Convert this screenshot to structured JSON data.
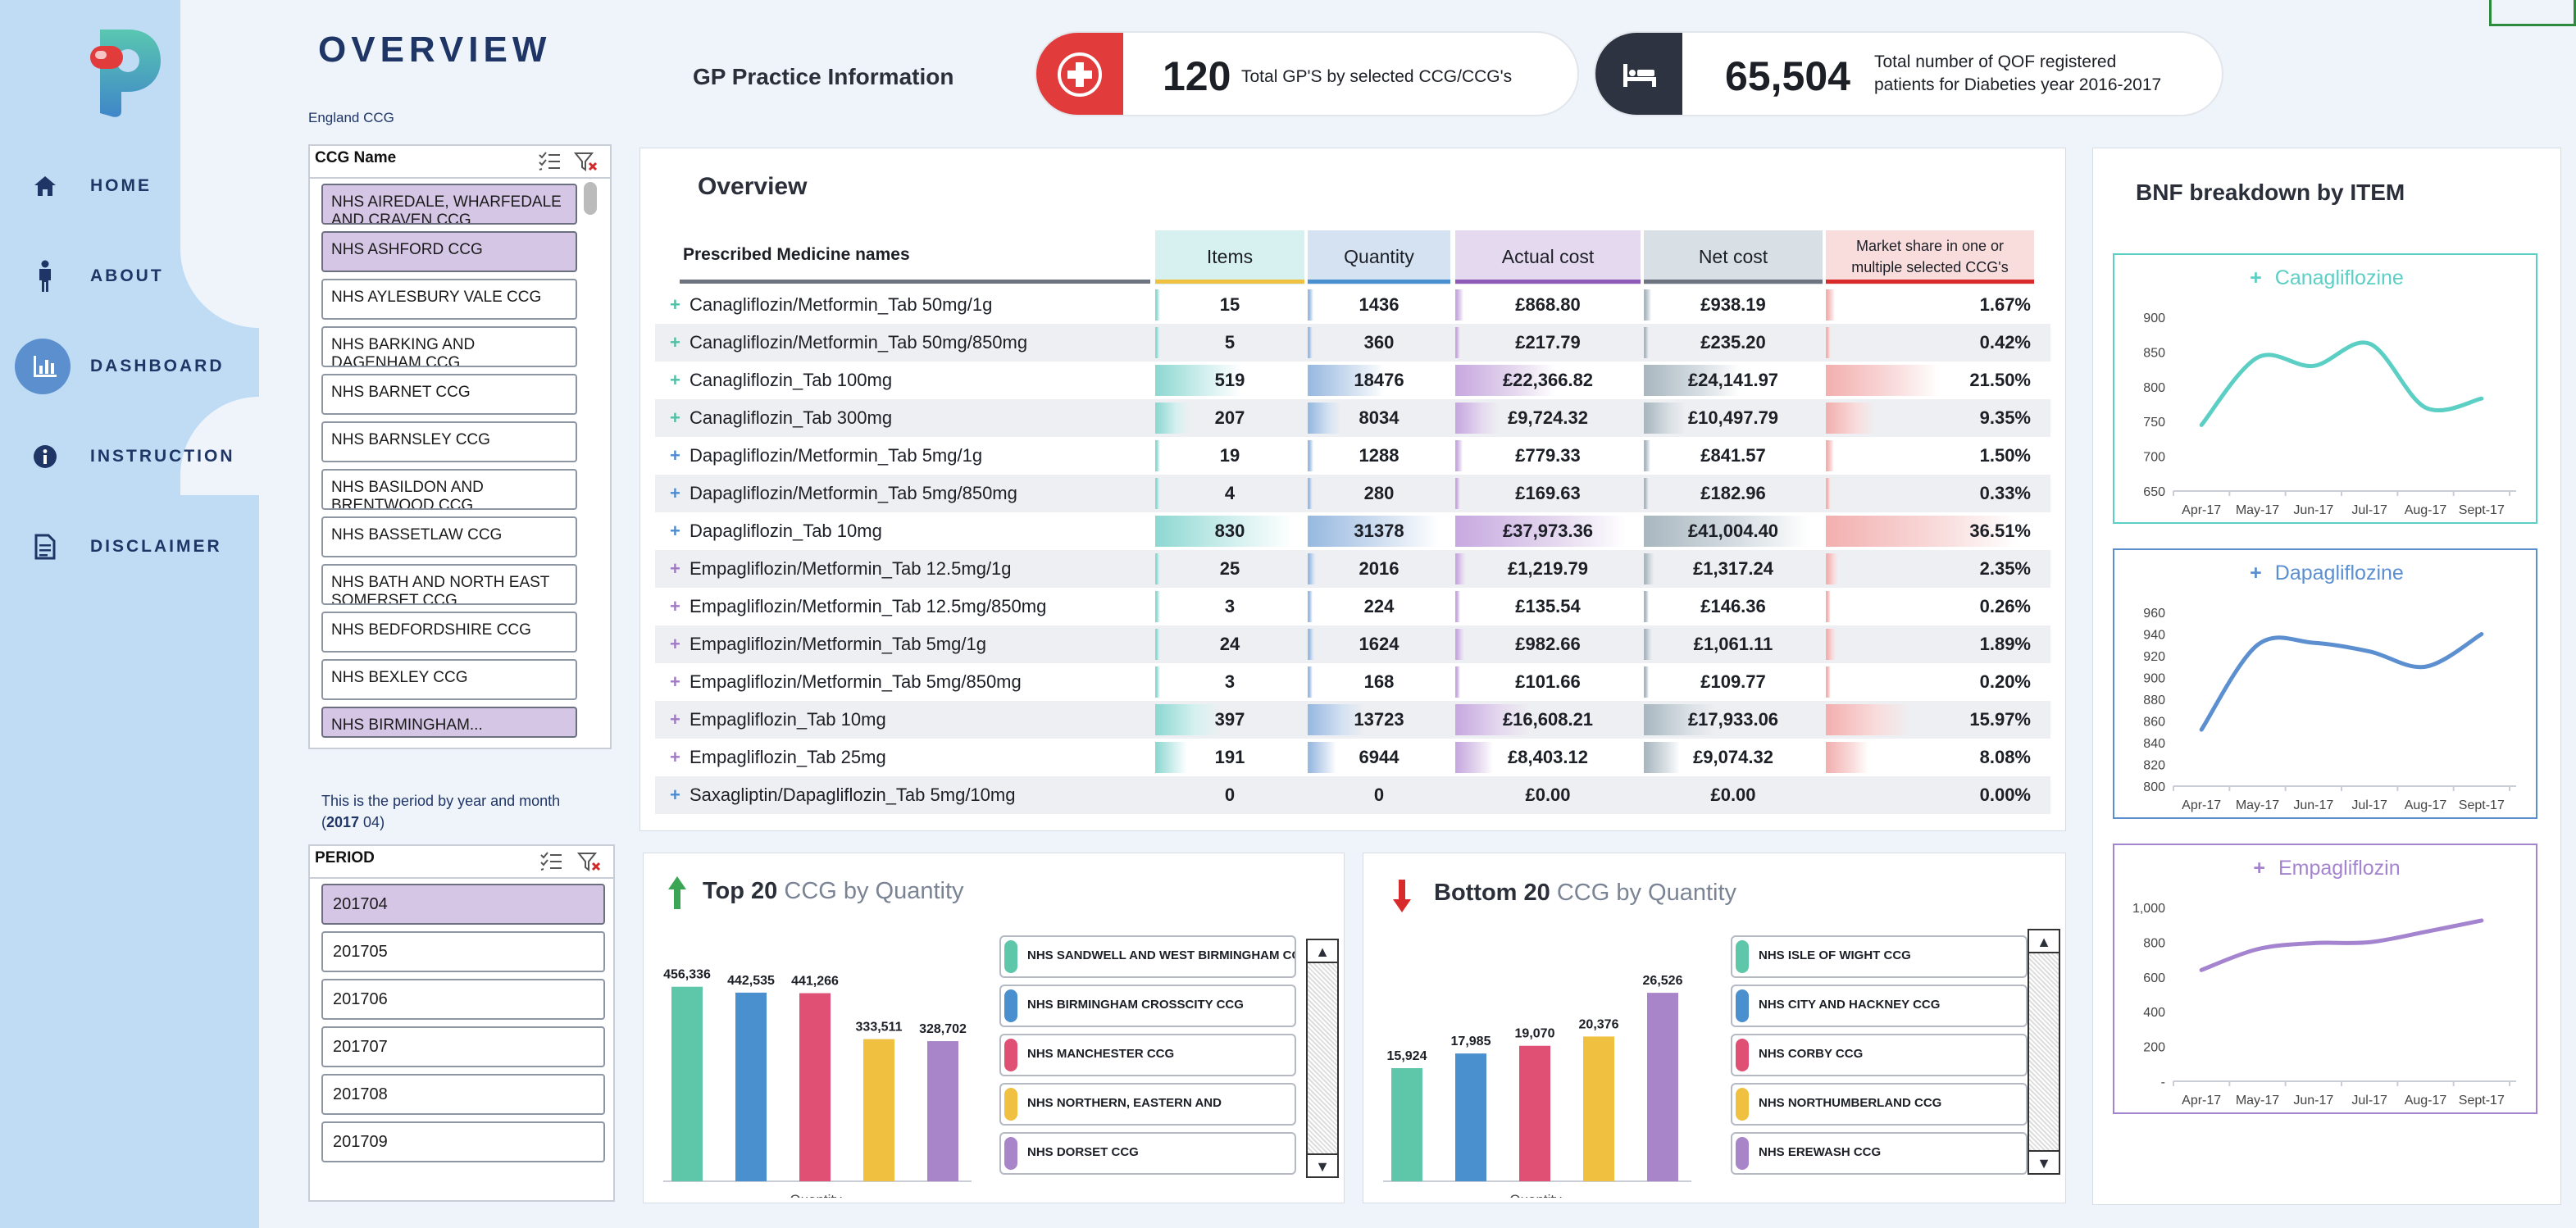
{
  "nav": {
    "items": [
      {
        "label": "HOME",
        "icon": "home-icon"
      },
      {
        "label": "ABOUT",
        "icon": "person-icon"
      },
      {
        "label": "DASHBOARD",
        "icon": "bar-chart-icon",
        "active": true
      },
      {
        "label": "INSTRUCTION",
        "icon": "info-icon"
      },
      {
        "label": "DISCLAIMER",
        "icon": "document-icon"
      }
    ]
  },
  "page": {
    "title": "OVERVIEW",
    "region_label": "England CCG",
    "gp_info_label": "GP Practice Information"
  },
  "kpis": {
    "gp_count": {
      "value": "120",
      "label": "Total GP'S by selected CCG/CCG's"
    },
    "patients": {
      "value": "65,504",
      "label_line1": "Total number of QOF registered",
      "label_line2": "patients for Diabeties year 2016-2017"
    }
  },
  "ccg_slicer": {
    "header": "CCG Name",
    "items": [
      {
        "label": "NHS AIREDALE, WHARFEDALE AND CRAVEN CCG",
        "selected": true
      },
      {
        "label": "NHS ASHFORD CCG",
        "selected": true
      },
      {
        "label": "NHS AYLESBURY VALE CCG",
        "selected": false
      },
      {
        "label": "NHS BARKING AND DAGENHAM CCG",
        "selected": false
      },
      {
        "label": "NHS BARNET CCG",
        "selected": false
      },
      {
        "label": "NHS BARNSLEY CCG",
        "selected": false
      },
      {
        "label": "NHS BASILDON AND BRENTWOOD CCG",
        "selected": false
      },
      {
        "label": "NHS BASSETLAW CCG",
        "selected": false
      },
      {
        "label": "NHS BATH AND NORTH EAST SOMERSET CCG",
        "selected": false
      },
      {
        "label": "NHS BEDFORDSHIRE CCG",
        "selected": false
      },
      {
        "label": "NHS BEXLEY CCG",
        "selected": false
      },
      {
        "label": "NHS BIRMINGHAM...",
        "selected": true
      }
    ]
  },
  "period_note": {
    "line1": "This is the period by year and month",
    "line2_prefix": "(",
    "line2_bold": "2017",
    "line2_suffix": " 04)"
  },
  "period_slicer": {
    "header": "PERIOD",
    "items": [
      {
        "label": "201704",
        "selected": true
      },
      {
        "label": "201705",
        "selected": false
      },
      {
        "label": "201706",
        "selected": false
      },
      {
        "label": "201707",
        "selected": false
      },
      {
        "label": "201708",
        "selected": false
      },
      {
        "label": "201709",
        "selected": false
      }
    ]
  },
  "overview": {
    "title": "Overview",
    "columns": {
      "name": "Prescribed Medicine names",
      "items": "Items",
      "quantity": "Quantity",
      "actual_cost": "Actual cost",
      "net_cost": "Net cost",
      "share_line1": "Market share in one or",
      "share_line2": "multiple selected CCG's"
    },
    "colors": {
      "items": "#d6f1f0",
      "quantity": "#d5e2f2",
      "actual_cost": "#e5d9ef",
      "net_cost": "#d9e0e5",
      "share": "#f9dcdc"
    },
    "rows": [
      {
        "name": "Canagliflozin/Metformin_Tab 50mg/1g",
        "plus_color": "#4fbfa5",
        "items": "15",
        "quantity": "1436",
        "actual_cost": "£868.80",
        "net_cost": "£938.19",
        "share": "1.67%",
        "share_pct": 1.67,
        "items_n": 15,
        "qty_n": 1436
      },
      {
        "name": "Canagliflozin/Metformin_Tab 50mg/850mg",
        "plus_color": "#4fbfa5",
        "items": "5",
        "quantity": "360",
        "actual_cost": "£217.79",
        "net_cost": "£235.20",
        "share": "0.42%",
        "share_pct": 0.42,
        "items_n": 5,
        "qty_n": 360
      },
      {
        "name": "Canagliflozin_Tab 100mg",
        "plus_color": "#4fbfa5",
        "items": "519",
        "quantity": "18476",
        "actual_cost": "£22,366.82",
        "net_cost": "£24,141.97",
        "share": "21.50%",
        "share_pct": 21.5,
        "items_n": 519,
        "qty_n": 18476
      },
      {
        "name": "Canagliflozin_Tab 300mg",
        "plus_color": "#4fbfa5",
        "items": "207",
        "quantity": "8034",
        "actual_cost": "£9,724.32",
        "net_cost": "£10,497.79",
        "share": "9.35%",
        "share_pct": 9.35,
        "items_n": 207,
        "qty_n": 8034
      },
      {
        "name": "Dapagliflozin/Metformin_Tab 5mg/1g",
        "plus_color": "#4e8ad0",
        "items": "19",
        "quantity": "1288",
        "actual_cost": "£779.33",
        "net_cost": "£841.57",
        "share": "1.50%",
        "share_pct": 1.5,
        "items_n": 19,
        "qty_n": 1288
      },
      {
        "name": "Dapagliflozin/Metformin_Tab 5mg/850mg",
        "plus_color": "#4e8ad0",
        "items": "4",
        "quantity": "280",
        "actual_cost": "£169.63",
        "net_cost": "£182.96",
        "share": "0.33%",
        "share_pct": 0.33,
        "items_n": 4,
        "qty_n": 280
      },
      {
        "name": "Dapagliflozin_Tab 10mg",
        "plus_color": "#4e8ad0",
        "items": "830",
        "quantity": "31378",
        "actual_cost": "£37,973.36",
        "net_cost": "£41,004.40",
        "share": "36.51%",
        "share_pct": 36.51,
        "items_n": 830,
        "qty_n": 31378
      },
      {
        "name": "Empagliflozin/Metformin_Tab 12.5mg/1g",
        "plus_color": "#a07bc4",
        "items": "25",
        "quantity": "2016",
        "actual_cost": "£1,219.79",
        "net_cost": "£1,317.24",
        "share": "2.35%",
        "share_pct": 2.35,
        "items_n": 25,
        "qty_n": 2016
      },
      {
        "name": "Empagliflozin/Metformin_Tab 12.5mg/850mg",
        "plus_color": "#a07bc4",
        "items": "3",
        "quantity": "224",
        "actual_cost": "£135.54",
        "net_cost": "£146.36",
        "share": "0.26%",
        "share_pct": 0.26,
        "items_n": 3,
        "qty_n": 224
      },
      {
        "name": "Empagliflozin/Metformin_Tab 5mg/1g",
        "plus_color": "#a07bc4",
        "items": "24",
        "quantity": "1624",
        "actual_cost": "£982.66",
        "net_cost": "£1,061.11",
        "share": "1.89%",
        "share_pct": 1.89,
        "items_n": 24,
        "qty_n": 1624
      },
      {
        "name": "Empagliflozin/Metformin_Tab 5mg/850mg",
        "plus_color": "#a07bc4",
        "items": "3",
        "quantity": "168",
        "actual_cost": "£101.66",
        "net_cost": "£109.77",
        "share": "0.20%",
        "share_pct": 0.2,
        "items_n": 3,
        "qty_n": 168
      },
      {
        "name": "Empagliflozin_Tab 10mg",
        "plus_color": "#a07bc4",
        "items": "397",
        "quantity": "13723",
        "actual_cost": "£16,608.21",
        "net_cost": "£17,933.06",
        "share": "15.97%",
        "share_pct": 15.97,
        "items_n": 397,
        "qty_n": 13723
      },
      {
        "name": "Empagliflozin_Tab 25mg",
        "plus_color": "#a07bc4",
        "items": "191",
        "quantity": "6944",
        "actual_cost": "£8,403.12",
        "net_cost": "£9,074.32",
        "share": "8.08%",
        "share_pct": 8.08,
        "items_n": 191,
        "qty_n": 6944
      },
      {
        "name": "Saxagliptin/Dapagliflozin_Tab 5mg/10mg",
        "plus_color": "#4e8ad0",
        "items": "0",
        "quantity": "0",
        "actual_cost": "£0.00",
        "net_cost": "£0.00",
        "share": "0.00%",
        "share_pct": 0,
        "items_n": 0,
        "qty_n": 0
      }
    ]
  },
  "top20": {
    "title_bold": "Top 20",
    "title_rest": " CCG by Quantity",
    "legend": [
      "NHS SANDWELL AND WEST BIRMINGHAM CCG",
      "NHS BIRMINGHAM CROSSCITY CCG",
      "NHS MANCHESTER CCG",
      "NHS NORTHERN, EASTERN AND",
      "NHS DORSET CCG"
    ]
  },
  "bottom20": {
    "title_bold": "Bottom 20",
    "title_rest": " CCG by Quantity",
    "legend": [
      "NHS ISLE OF WIGHT CCG",
      "NHS CITY AND HACKNEY CCG",
      "NHS CORBY CCG",
      "NHS NORTHUMBERLAND CCG",
      "NHS EREWASH CCG"
    ]
  },
  "bnf": {
    "title": "BNF breakdown by ITEM",
    "charts": [
      {
        "name": "Canagliflozine",
        "color": "#5ccfc4"
      },
      {
        "name": "Dapagliflozine",
        "color": "#5b8fd0"
      },
      {
        "name": "Empagliflozin",
        "color": "#a584cf"
      }
    ]
  },
  "chart_data": [
    {
      "type": "bar",
      "title": "Top 20 CCG by Quantity",
      "xlabel": "Quantity",
      "categories": [
        "NHS SANDWELL AND WEST BIRMINGHAM CCG",
        "NHS BIRMINGHAM CROSSCITY CCG",
        "NHS MANCHESTER CCG",
        "NHS NORTHERN, EASTERN AND",
        "NHS DORSET CCG"
      ],
      "values": [
        456336,
        442535,
        441266,
        333511,
        328702
      ],
      "labels": [
        "456,336",
        "442,535",
        "441,266",
        "333,511",
        "328,702"
      ],
      "colors": [
        "#5ec7a9",
        "#4a90cf",
        "#e04f74",
        "#f0c040",
        "#a884c9"
      ],
      "ylim": [
        0,
        500000
      ]
    },
    {
      "type": "bar",
      "title": "Bottom 20 CCG by Quantity",
      "xlabel": "Quantity",
      "categories": [
        "NHS ISLE OF WIGHT CCG",
        "NHS CITY AND HACKNEY CCG",
        "NHS CORBY CCG",
        "NHS NORTHUMBERLAND CCG",
        "NHS EREWASH CCG"
      ],
      "values": [
        15924,
        17985,
        19070,
        20376,
        26526
      ],
      "labels": [
        "15,924",
        "17,985",
        "19,070",
        "20,376",
        "26,526"
      ],
      "colors": [
        "#5ec7a9",
        "#4a90cf",
        "#e04f74",
        "#f0c040",
        "#a884c9"
      ],
      "ylim": [
        0,
        30000
      ]
    },
    {
      "type": "line",
      "title": "Canagliflozine",
      "x": [
        "Apr-17",
        "May-17",
        "Jun-17",
        "Jul-17",
        "Aug-17",
        "Sept-17"
      ],
      "values": [
        745,
        842,
        830,
        862,
        770,
        783
      ],
      "yticks": [
        "900",
        "850",
        "800",
        "750",
        "700",
        "650"
      ],
      "ylim": [
        650,
        900
      ]
    },
    {
      "type": "line",
      "title": "Dapagliflozine",
      "x": [
        "Apr-17",
        "May-17",
        "Jun-17",
        "Jul-17",
        "Aug-17",
        "Sept-17"
      ],
      "values": [
        852,
        930,
        932,
        924,
        910,
        940
      ],
      "yticks": [
        "960",
        "940",
        "920",
        "900",
        "880",
        "860",
        "840",
        "820",
        "800"
      ],
      "ylim": [
        800,
        960
      ]
    },
    {
      "type": "line",
      "title": "Empagliflozin",
      "x": [
        "Apr-17",
        "May-17",
        "Jun-17",
        "Jul-17",
        "Aug-17",
        "Sept-17"
      ],
      "values": [
        640,
        760,
        795,
        800,
        860,
        925
      ],
      "yticks": [
        "1,000",
        "800",
        "600",
        "400",
        "200",
        "-"
      ],
      "ylim": [
        0,
        1000
      ]
    }
  ]
}
